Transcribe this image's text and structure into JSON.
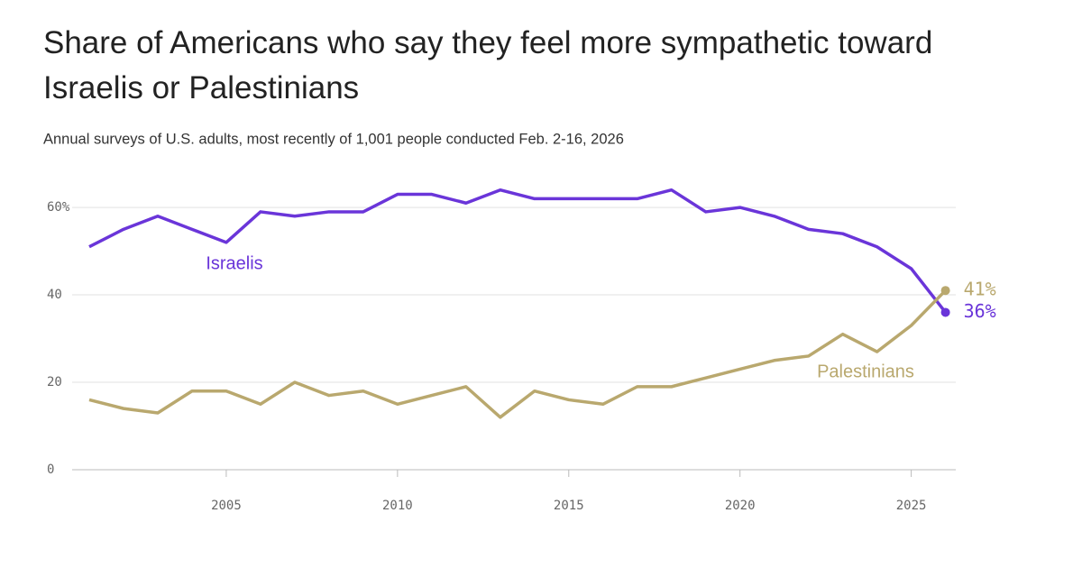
{
  "chart_data": {
    "type": "line",
    "title": "Share of Americans who say they feel more sympathetic toward Israelis or Palestinians",
    "subtitle": "Annual surveys of U.S. adults, most recently of 1,001 people conducted Feb. 2-16, 2026",
    "x": [
      2001,
      2002,
      2003,
      2004,
      2005,
      2006,
      2007,
      2008,
      2009,
      2010,
      2011,
      2012,
      2013,
      2014,
      2015,
      2016,
      2017,
      2018,
      2019,
      2020,
      2021,
      2022,
      2023,
      2024,
      2025,
      2026
    ],
    "series": [
      {
        "name": "Israelis",
        "color": "#6a35d9",
        "values": [
          51,
          55,
          58,
          55,
          52,
          59,
          58,
          59,
          59,
          63,
          63,
          61,
          64,
          62,
          62,
          62,
          62,
          64,
          59,
          60,
          58,
          55,
          54,
          51,
          46,
          36
        ],
        "value_labels": [
          null,
          null,
          null,
          null,
          null,
          null,
          null,
          null,
          null,
          null,
          null,
          null,
          null,
          null,
          null,
          null,
          null,
          null,
          null,
          null,
          null,
          null,
          null,
          null,
          null,
          "36%"
        ]
      },
      {
        "name": "Palestinians",
        "color": "#b9a86e",
        "values": [
          16,
          14,
          13,
          18,
          18,
          15,
          20,
          17,
          18,
          15,
          17,
          19,
          12,
          18,
          16,
          15,
          19,
          19,
          21,
          23,
          25,
          26,
          31,
          27,
          33,
          41
        ],
        "value_labels": [
          null,
          null,
          null,
          null,
          null,
          null,
          null,
          null,
          null,
          null,
          null,
          null,
          null,
          null,
          null,
          null,
          null,
          null,
          null,
          null,
          null,
          null,
          null,
          null,
          null,
          "41%"
        ]
      }
    ],
    "xlim": [
      2000.5,
      2026.3
    ],
    "xticks": [
      2005,
      2010,
      2015,
      2020,
      2025
    ],
    "ylim": [
      0,
      66
    ],
    "yticks": [
      0,
      20,
      40,
      {
        "value": 60,
        "label": "60%"
      }
    ],
    "grid": true
  }
}
